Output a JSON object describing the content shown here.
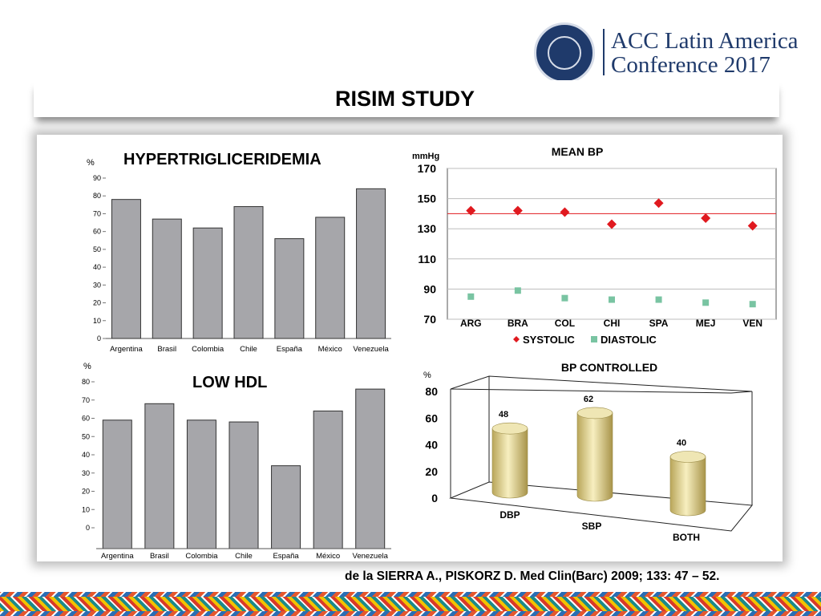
{
  "header": {
    "logo_line1": "ACC Latin America",
    "logo_line2": "Conference 2017",
    "title": "RISIM STUDY"
  },
  "citation": "de la SIERRA A., PISKORZ D. Med Clin(Barc) 2009; 133: 47 – 52.",
  "chart_data": [
    {
      "id": "hypertriglyceridemia",
      "type": "bar",
      "title": "HYPERTRIGLICERIDEMIA",
      "ylabel": "%",
      "ylim": [
        0,
        90
      ],
      "yticks": [
        "0",
        "10",
        "20",
        "30",
        "40",
        "50",
        "60",
        "70",
        "80",
        "90"
      ],
      "categories": [
        "Argentina",
        "Brasil",
        "Colombia",
        "Chile",
        "España",
        "México",
        "Venezuela"
      ],
      "values": [
        78,
        67,
        62,
        74,
        56,
        68,
        84
      ],
      "colors": {
        "bar": "#a6a6aa"
      }
    },
    {
      "id": "low_hdl",
      "type": "bar",
      "title": "LOW HDL",
      "ylabel": "%",
      "ylim": [
        0,
        80
      ],
      "yticks": [
        "0",
        "10",
        "20",
        "30",
        "40",
        "50",
        "60",
        "70",
        "80"
      ],
      "categories": [
        "Argentina",
        "Brasil",
        "Colombia",
        "Chile",
        "España",
        "México",
        "Venezuela"
      ],
      "values": [
        59,
        68,
        59,
        58,
        34,
        64,
        76
      ],
      "colors": {
        "bar": "#a6a6aa"
      }
    },
    {
      "id": "mean_bp",
      "type": "scatter",
      "title": "MEAN BP",
      "ylabel": "mmHg",
      "ylim": [
        70,
        170
      ],
      "yticks": [
        "70",
        "90",
        "110",
        "130",
        "150",
        "170"
      ],
      "categories": [
        "ARG",
        "BRA",
        "COL",
        "CHI",
        "SPA",
        "MEJ",
        "VEN"
      ],
      "series": [
        {
          "name": "SYSTOLIC",
          "values": [
            142,
            142,
            141,
            133,
            147,
            137,
            132
          ],
          "color": "#e0191f",
          "marker": "diamond"
        },
        {
          "name": "DIASTOLIC",
          "values": [
            85,
            89,
            84,
            83,
            83,
            81,
            80
          ],
          "color": "#79c4a2",
          "marker": "square"
        }
      ],
      "reference_line": {
        "value": 140,
        "color": "#e0191f"
      },
      "grid": true,
      "legend": "bottom"
    },
    {
      "id": "bp_controlled",
      "type": "bar",
      "style": "3d-cylinder",
      "title": "BP CONTROLLED",
      "ylabel": "%",
      "ylim": [
        0,
        80
      ],
      "yticks": [
        "0",
        "20",
        "40",
        "60",
        "80"
      ],
      "categories": [
        "DBP",
        "SBP",
        "BOTH"
      ],
      "values": [
        48,
        62,
        40
      ],
      "data_labels": [
        "48",
        "62",
        "40"
      ],
      "colors": {
        "bar": "#e8d98f"
      }
    }
  ]
}
